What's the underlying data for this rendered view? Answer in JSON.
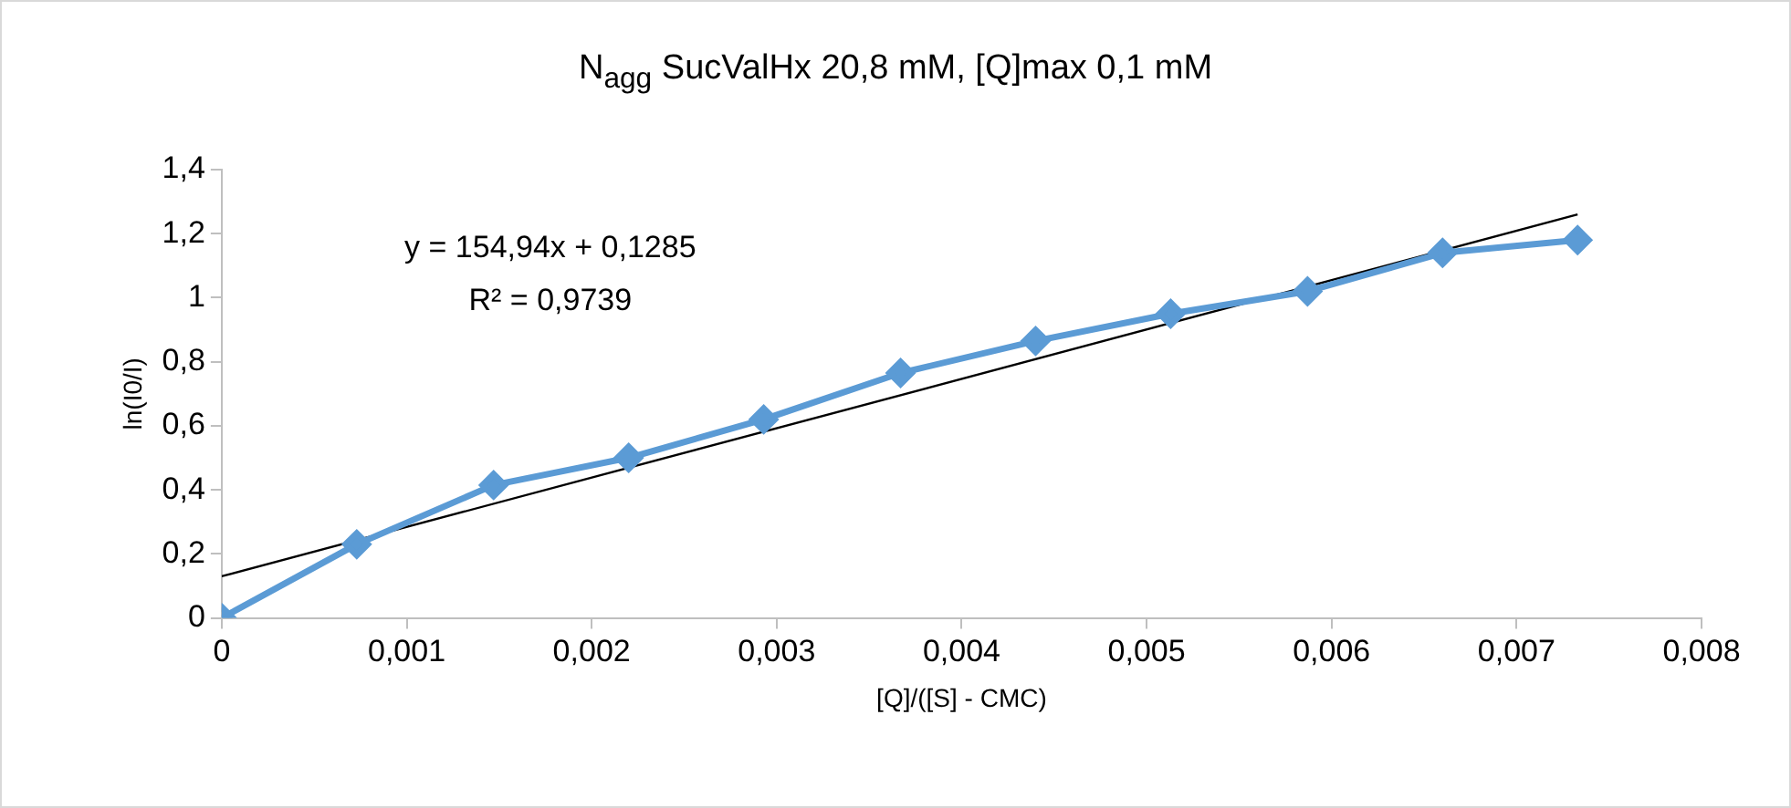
{
  "chart_data": {
    "type": "line",
    "title": "N$_{agg}$ SucValHx 20,8 mM, [Q]max 0,1 mM",
    "xlabel": "[Q]/([S] - CMC)",
    "ylabel": "ln(I0/I)",
    "xlim": [
      0,
      0.008
    ],
    "xticks": [
      {
        "value": 0,
        "label": "0"
      },
      {
        "value": 0.001,
        "label": "0,001"
      },
      {
        "value": 0.002,
        "label": "0,002"
      },
      {
        "value": 0.003,
        "label": "0,003"
      },
      {
        "value": 0.004,
        "label": "0,004"
      },
      {
        "value": 0.005,
        "label": "0,005"
      },
      {
        "value": 0.006,
        "label": "0,006"
      },
      {
        "value": 0.007,
        "label": "0,007"
      },
      {
        "value": 0.008,
        "label": "0,008"
      }
    ],
    "ylim": [
      0,
      1.4
    ],
    "yticks": [
      {
        "value": 0,
        "label": "0"
      },
      {
        "value": 0.2,
        "label": "0,2"
      },
      {
        "value": 0.4,
        "label": "0,4"
      },
      {
        "value": 0.6,
        "label": "0,6"
      },
      {
        "value": 0.8,
        "label": "0,8"
      },
      {
        "value": 1,
        "label": "1"
      },
      {
        "value": 1.2,
        "label": "1,2"
      },
      {
        "value": 1.4,
        "label": "1,4"
      }
    ],
    "grid": false,
    "legend": false,
    "marker": "diamond",
    "line_style": "solid",
    "x": [
      0,
      0.00073,
      0.00147,
      0.0022,
      0.00293,
      0.00367,
      0.0044,
      0.00513,
      0.00587,
      0.0066,
      0.00733
    ],
    "series": [
      {
        "color": "#5b9bd5",
        "values": [
          0,
          0.23,
          0.415,
          0.5,
          0.62,
          0.765,
          0.865,
          0.95,
          1.02,
          1.14,
          1.18
        ]
      },
      {
        "type": "line",
        "color": "#000000",
        "marker": "none",
        "x": [
          0,
          0.00733
        ],
        "values": [
          0.13,
          1.26
        ]
      }
    ],
    "annotations": [
      "y = 154,94x + 0,1285",
      "R² = 0,9739"
    ]
  }
}
